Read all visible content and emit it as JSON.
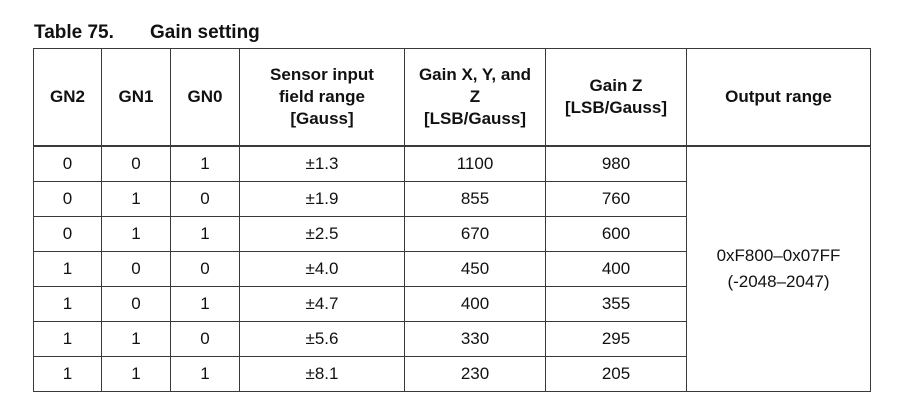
{
  "caption": {
    "number": "Table 75.",
    "title": "Gain setting"
  },
  "headers": {
    "gn2": "GN2",
    "gn1": "GN1",
    "gn0": "GN0",
    "sensor_range": [
      "Sensor input",
      "field range",
      "[Gauss]"
    ],
    "gain_xyz": [
      "Gain X, Y, and",
      "Z",
      "[LSB/Gauss]"
    ],
    "gain_z": [
      "Gain Z",
      "[LSB/Gauss]"
    ],
    "output_range": "Output range"
  },
  "rows": [
    {
      "gn2": "0",
      "gn1": "0",
      "gn0": "1",
      "range": "±1.3",
      "gain_xyz": "1100",
      "gain_z": "980"
    },
    {
      "gn2": "0",
      "gn1": "1",
      "gn0": "0",
      "range": "±1.9",
      "gain_xyz": "855",
      "gain_z": "760"
    },
    {
      "gn2": "0",
      "gn1": "1",
      "gn0": "1",
      "range": "±2.5",
      "gain_xyz": "670",
      "gain_z": "600"
    },
    {
      "gn2": "1",
      "gn1": "0",
      "gn0": "0",
      "range": "±4.0",
      "gain_xyz": "450",
      "gain_z": "400"
    },
    {
      "gn2": "1",
      "gn1": "0",
      "gn0": "1",
      "range": "±4.7",
      "gain_xyz": "400",
      "gain_z": "355"
    },
    {
      "gn2": "1",
      "gn1": "1",
      "gn0": "0",
      "range": "±5.6",
      "gain_xyz": "330",
      "gain_z": "295"
    },
    {
      "gn2": "1",
      "gn1": "1",
      "gn0": "1",
      "range": "±8.1",
      "gain_xyz": "230",
      "gain_z": "205"
    }
  ],
  "output_range": {
    "hex": "0xF800–0x07FF",
    "decimal": "(-2048–2047)"
  }
}
